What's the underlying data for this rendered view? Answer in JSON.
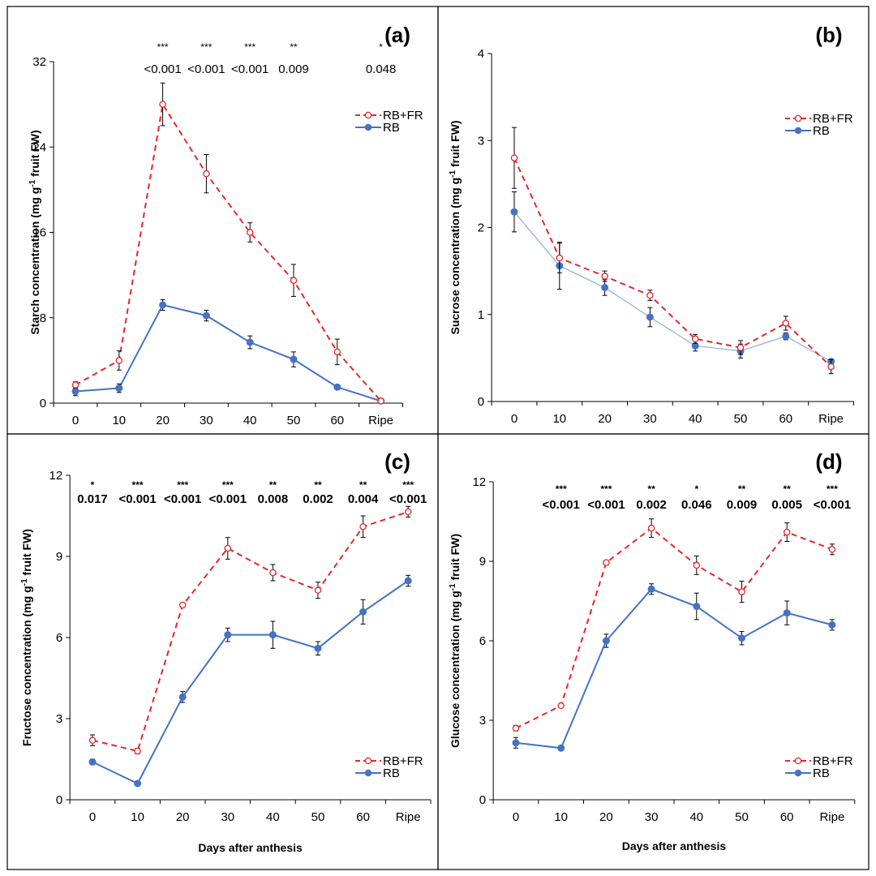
{
  "chart_data": [
    {
      "type": "line",
      "panel_label": "(a)",
      "ylabel": "Starch concentration (mg g-1 fruit FW)",
      "xlabel": "",
      "categories": [
        "0",
        "10",
        "20",
        "30",
        "40",
        "50",
        "60",
        "Ripe"
      ],
      "ylim": [
        0,
        32
      ],
      "yticks": [
        "0",
        "8",
        "16",
        "24",
        "32"
      ],
      "legend_position": "top-right",
      "series": [
        {
          "name": "RB+FR",
          "color": "#e8262a",
          "style": "dashed",
          "marker": "open-circle",
          "values": [
            1.7,
            4.0,
            28.0,
            21.5,
            16.0,
            11.5,
            4.8,
            0.2
          ],
          "errors": [
            0.3,
            0.9,
            2.0,
            1.8,
            0.9,
            1.5,
            1.2,
            0.1
          ]
        },
        {
          "name": "RB",
          "color": "#4472c4",
          "style": "solid",
          "marker": "filled-circle",
          "values": [
            1.1,
            1.4,
            9.2,
            8.2,
            5.7,
            4.1,
            1.5,
            0.2
          ],
          "errors": [
            0.4,
            0.4,
            0.5,
            0.5,
            0.6,
            0.7,
            0.1,
            0.1
          ]
        }
      ],
      "significance": [
        {
          "category": "20",
          "stars": "***",
          "p": "<0.001"
        },
        {
          "category": "30",
          "stars": "***",
          "p": "<0.001"
        },
        {
          "category": "40",
          "stars": "***",
          "p": "<0.001"
        },
        {
          "category": "50",
          "stars": "**",
          "p": "0.009"
        },
        {
          "category": "Ripe",
          "stars": "*",
          "p": "0.048"
        }
      ]
    },
    {
      "type": "line",
      "panel_label": "(b)",
      "ylabel": "Sucrose concentration (mg g-1 fruit FW)",
      "xlabel": "",
      "categories": [
        "0",
        "10",
        "20",
        "30",
        "40",
        "50",
        "60",
        "Ripe"
      ],
      "ylim": [
        0,
        4
      ],
      "yticks": [
        "0",
        "1",
        "2",
        "3",
        "4"
      ],
      "legend_position": "top-right",
      "series": [
        {
          "name": "RB+FR",
          "color": "#e8262a",
          "style": "dashed",
          "marker": "open-circle",
          "values": [
            2.8,
            1.65,
            1.44,
            1.22,
            0.72,
            0.62,
            0.9,
            0.4
          ],
          "errors": [
            0.35,
            0.17,
            0.06,
            0.06,
            0.05,
            0.08,
            0.08,
            0.08
          ]
        },
        {
          "name": "RB",
          "color": "#4472c4",
          "style": "solid-light",
          "marker": "filled-circle",
          "values": [
            2.18,
            1.56,
            1.31,
            0.97,
            0.64,
            0.58,
            0.75,
            0.46
          ],
          "errors": [
            0.23,
            0.27,
            0.09,
            0.11,
            0.06,
            0.08,
            0.04,
            0.03
          ]
        }
      ],
      "significance": []
    },
    {
      "type": "line",
      "panel_label": "(c)",
      "ylabel": "Fructose concentration (mg g-1 fruit FW)",
      "xlabel": "Days after anthesis",
      "categories": [
        "0",
        "10",
        "20",
        "30",
        "40",
        "50",
        "60",
        "Ripe"
      ],
      "ylim": [
        0,
        12
      ],
      "yticks": [
        "0",
        "3",
        "6",
        "9",
        "12"
      ],
      "legend_position": "bottom-right",
      "series": [
        {
          "name": "RB+FR",
          "color": "#e8262a",
          "style": "dashed",
          "marker": "open-circle",
          "values": [
            2.2,
            1.8,
            7.2,
            9.3,
            8.4,
            7.75,
            10.1,
            10.65
          ],
          "errors": [
            0.2,
            0.1,
            0.08,
            0.4,
            0.3,
            0.3,
            0.4,
            0.2
          ]
        },
        {
          "name": "RB",
          "color": "#4472c4",
          "style": "solid",
          "marker": "filled-circle",
          "values": [
            1.4,
            0.6,
            3.8,
            6.1,
            6.1,
            5.6,
            6.95,
            8.1
          ],
          "errors": [
            0.1,
            0.05,
            0.2,
            0.25,
            0.5,
            0.25,
            0.45,
            0.2
          ]
        }
      ],
      "significance": [
        {
          "category": "0",
          "stars": "*",
          "p": "0.017"
        },
        {
          "category": "10",
          "stars": "***",
          "p": "<0.001"
        },
        {
          "category": "20",
          "stars": "***",
          "p": "<0.001"
        },
        {
          "category": "30",
          "stars": "***",
          "p": "<0.001"
        },
        {
          "category": "40",
          "stars": "**",
          "p": "0.008"
        },
        {
          "category": "50",
          "stars": "**",
          "p": "0.002"
        },
        {
          "category": "60",
          "stars": "**",
          "p": "0.004"
        },
        {
          "category": "Ripe",
          "stars": "***",
          "p": "<0.001"
        }
      ]
    },
    {
      "type": "line",
      "panel_label": "(d)",
      "ylabel": "Glucose concentration (mg g-1 fruit FW)",
      "xlabel": "Days after anthesis",
      "categories": [
        "0",
        "10",
        "20",
        "30",
        "40",
        "50",
        "60",
        "Ripe"
      ],
      "ylim": [
        0,
        12
      ],
      "yticks": [
        "0",
        "3",
        "6",
        "9",
        "12"
      ],
      "legend_position": "bottom-right",
      "series": [
        {
          "name": "RB+FR",
          "color": "#e8262a",
          "style": "dashed",
          "marker": "open-circle",
          "values": [
            2.7,
            3.55,
            8.95,
            10.25,
            8.85,
            7.85,
            10.1,
            9.45
          ],
          "errors": [
            0.1,
            0.05,
            0.08,
            0.35,
            0.35,
            0.4,
            0.35,
            0.2
          ]
        },
        {
          "name": "RB",
          "color": "#4472c4",
          "style": "solid",
          "marker": "filled-circle",
          "values": [
            2.15,
            1.95,
            6.0,
            7.95,
            7.3,
            6.1,
            7.05,
            6.6
          ],
          "errors": [
            0.2,
            0.05,
            0.25,
            0.2,
            0.5,
            0.25,
            0.45,
            0.2
          ]
        }
      ],
      "significance": [
        {
          "category": "10",
          "stars": "***",
          "p": "<0.001"
        },
        {
          "category": "20",
          "stars": "***",
          "p": "<0.001"
        },
        {
          "category": "30",
          "stars": "**",
          "p": "0.002"
        },
        {
          "category": "40",
          "stars": "*",
          "p": "0.046"
        },
        {
          "category": "50",
          "stars": "**",
          "p": "0.009"
        },
        {
          "category": "60",
          "stars": "**",
          "p": "0.005"
        },
        {
          "category": "Ripe",
          "stars": "***",
          "p": "<0.001"
        }
      ]
    }
  ]
}
